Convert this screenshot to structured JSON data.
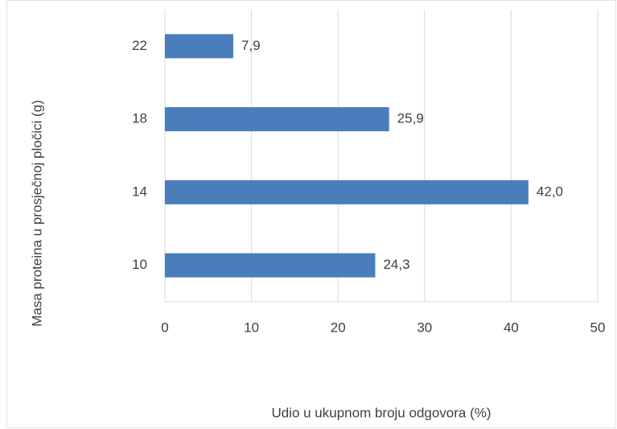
{
  "chart_data": {
    "type": "bar",
    "orientation": "horizontal",
    "x_label": "Udio u ukupnom broju odgovora (%)",
    "y_label": "Masa proteina u prosječnoj pločici (g)",
    "categories": [
      "10",
      "14",
      "18",
      "22"
    ],
    "values": [
      24.3,
      42.0,
      25.9,
      7.9
    ],
    "value_labels": [
      "24,3",
      "42,0",
      "25,9",
      "7,9"
    ],
    "color": "#4a7ebb",
    "xlim": [
      0,
      50
    ],
    "xticks": [
      0,
      10,
      20,
      30,
      40,
      50
    ],
    "grid": true
  }
}
